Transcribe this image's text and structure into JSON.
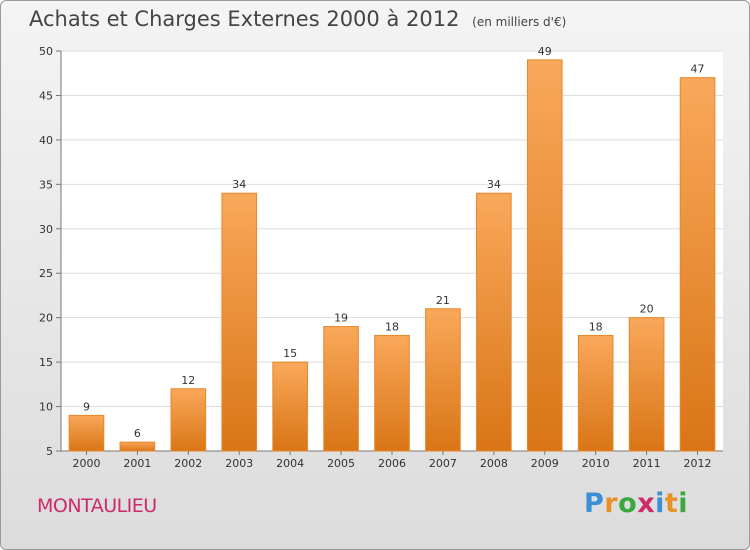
{
  "header": {
    "title": "Achats et Charges Externes 2000 à 2012",
    "subtitle": "(en milliers d'€)"
  },
  "footer": {
    "commune": "MONTAULIEU",
    "logo_letters": [
      "P",
      "r",
      "o",
      "x",
      "i",
      "t",
      "i"
    ],
    "logo_colors": [
      "#3a8fd6",
      "#e8902a",
      "#3aa83a",
      "#cc2b6b",
      "#3a8fd6",
      "#e8902a",
      "#3aa83a"
    ]
  },
  "chart_data": {
    "type": "bar",
    "categories": [
      "2000",
      "2001",
      "2002",
      "2003",
      "2004",
      "2005",
      "2006",
      "2007",
      "2008",
      "2009",
      "2010",
      "2011",
      "2012"
    ],
    "values": [
      9,
      6,
      12,
      34,
      15,
      19,
      18,
      21,
      34,
      49,
      18,
      20,
      47
    ],
    "yticks": [
      5,
      10,
      15,
      20,
      25,
      30,
      35,
      40,
      45,
      50
    ],
    "ylim": [
      5,
      50
    ],
    "grid": true,
    "bar_color": "#f0902c"
  }
}
